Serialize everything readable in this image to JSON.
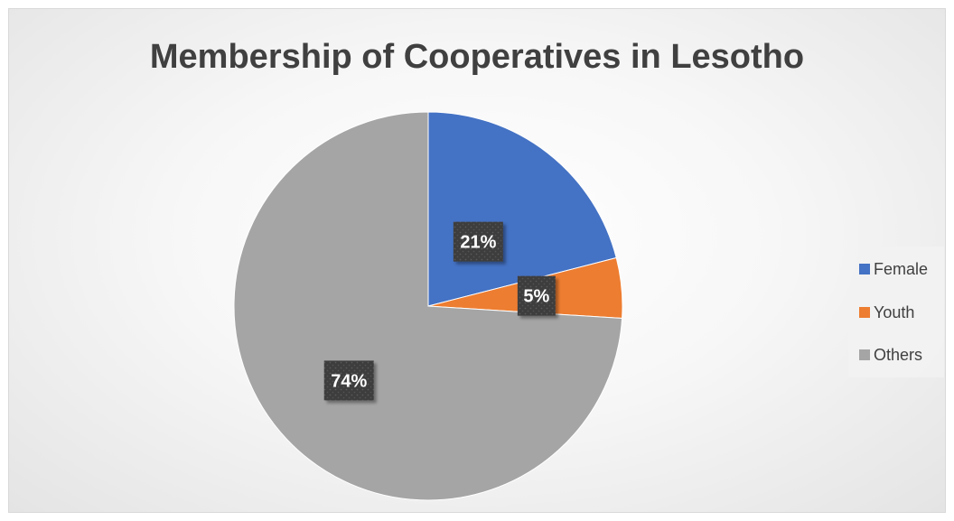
{
  "chart_data": {
    "type": "pie",
    "title": "Membership of Cooperatives in Lesotho",
    "categories": [
      "Female",
      "Youth",
      "Others"
    ],
    "values": [
      21,
      5,
      74
    ],
    "data_labels": [
      "21%",
      "5%",
      "74%"
    ],
    "colors": [
      "#4472C4",
      "#ED7D31",
      "#A5A5A5"
    ],
    "legend_placement": "right",
    "start_angle": "top, clockwise"
  }
}
